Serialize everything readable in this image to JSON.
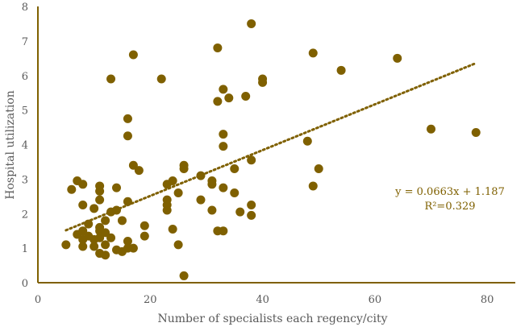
{
  "chart_data": {
    "type": "scatter",
    "xlabel": "Number of specialists each regency/city",
    "ylabel": "Hospital utilization",
    "xlim": [
      0,
      85
    ],
    "ylim": [
      0,
      8
    ],
    "x_ticks": [
      "0",
      "20",
      "40",
      "60",
      "80"
    ],
    "y_ticks": [
      "0",
      "1",
      "2",
      "3",
      "4",
      "5",
      "6",
      "7",
      "8"
    ],
    "grid": false,
    "marker_color": "#7f6000",
    "trendline": {
      "type": "linear",
      "slope": 0.0663,
      "intercept": 1.187,
      "x_range": [
        5,
        78
      ],
      "style": "dotted",
      "color": "#7f6000",
      "equation": "y = 0.0663x + 1.187",
      "r2": "R²=0.329"
    },
    "points": [
      [
        5,
        1.1
      ],
      [
        6,
        2.7
      ],
      [
        7,
        2.95
      ],
      [
        7,
        1.4
      ],
      [
        8,
        2.85
      ],
      [
        8,
        2.25
      ],
      [
        8,
        1.5
      ],
      [
        8,
        1.25
      ],
      [
        8,
        1.05
      ],
      [
        9,
        1.7
      ],
      [
        9,
        1.35
      ],
      [
        10,
        2.15
      ],
      [
        10,
        1.25
      ],
      [
        10,
        1.05
      ],
      [
        11,
        2.8
      ],
      [
        11,
        2.65
      ],
      [
        11,
        2.4
      ],
      [
        11,
        1.6
      ],
      [
        11,
        1.5
      ],
      [
        11,
        1.3
      ],
      [
        11,
        0.85
      ],
      [
        12,
        1.8
      ],
      [
        12,
        1.45
      ],
      [
        12,
        1.1
      ],
      [
        12,
        0.8
      ],
      [
        13,
        5.9
      ],
      [
        13,
        2.05
      ],
      [
        13,
        1.3
      ],
      [
        14,
        2.75
      ],
      [
        14,
        2.1
      ],
      [
        14,
        0.95
      ],
      [
        15,
        1.8
      ],
      [
        15,
        0.9
      ],
      [
        16,
        4.75
      ],
      [
        16,
        4.25
      ],
      [
        16,
        2.35
      ],
      [
        16,
        1.2
      ],
      [
        16,
        1.0
      ],
      [
        17,
        6.6
      ],
      [
        17,
        3.4
      ],
      [
        17,
        1.0
      ],
      [
        18,
        3.25
      ],
      [
        19,
        1.65
      ],
      [
        19,
        1.35
      ],
      [
        22,
        5.9
      ],
      [
        23,
        2.85
      ],
      [
        23,
        2.4
      ],
      [
        23,
        2.25
      ],
      [
        23,
        2.1
      ],
      [
        24,
        2.95
      ],
      [
        24,
        1.55
      ],
      [
        25,
        2.6
      ],
      [
        25,
        1.1
      ],
      [
        26,
        3.4
      ],
      [
        26,
        3.3
      ],
      [
        26,
        0.2
      ],
      [
        29,
        3.1
      ],
      [
        29,
        2.4
      ],
      [
        31,
        2.95
      ],
      [
        31,
        2.85
      ],
      [
        31,
        2.1
      ],
      [
        32,
        6.8
      ],
      [
        32,
        5.25
      ],
      [
        32,
        1.5
      ],
      [
        33,
        5.6
      ],
      [
        33,
        4.3
      ],
      [
        33,
        3.95
      ],
      [
        33,
        2.75
      ],
      [
        33,
        1.5
      ],
      [
        34,
        5.35
      ],
      [
        35,
        3.3
      ],
      [
        35,
        2.6
      ],
      [
        36,
        2.05
      ],
      [
        37,
        5.4
      ],
      [
        38,
        7.5
      ],
      [
        38,
        3.55
      ],
      [
        38,
        2.25
      ],
      [
        38,
        1.95
      ],
      [
        40,
        5.9
      ],
      [
        40,
        5.8
      ],
      [
        48,
        4.1
      ],
      [
        49,
        6.65
      ],
      [
        49,
        2.8
      ],
      [
        50,
        3.3
      ],
      [
        54,
        6.15
      ],
      [
        64,
        6.5
      ],
      [
        70,
        4.45
      ],
      [
        78,
        4.35
      ]
    ]
  }
}
